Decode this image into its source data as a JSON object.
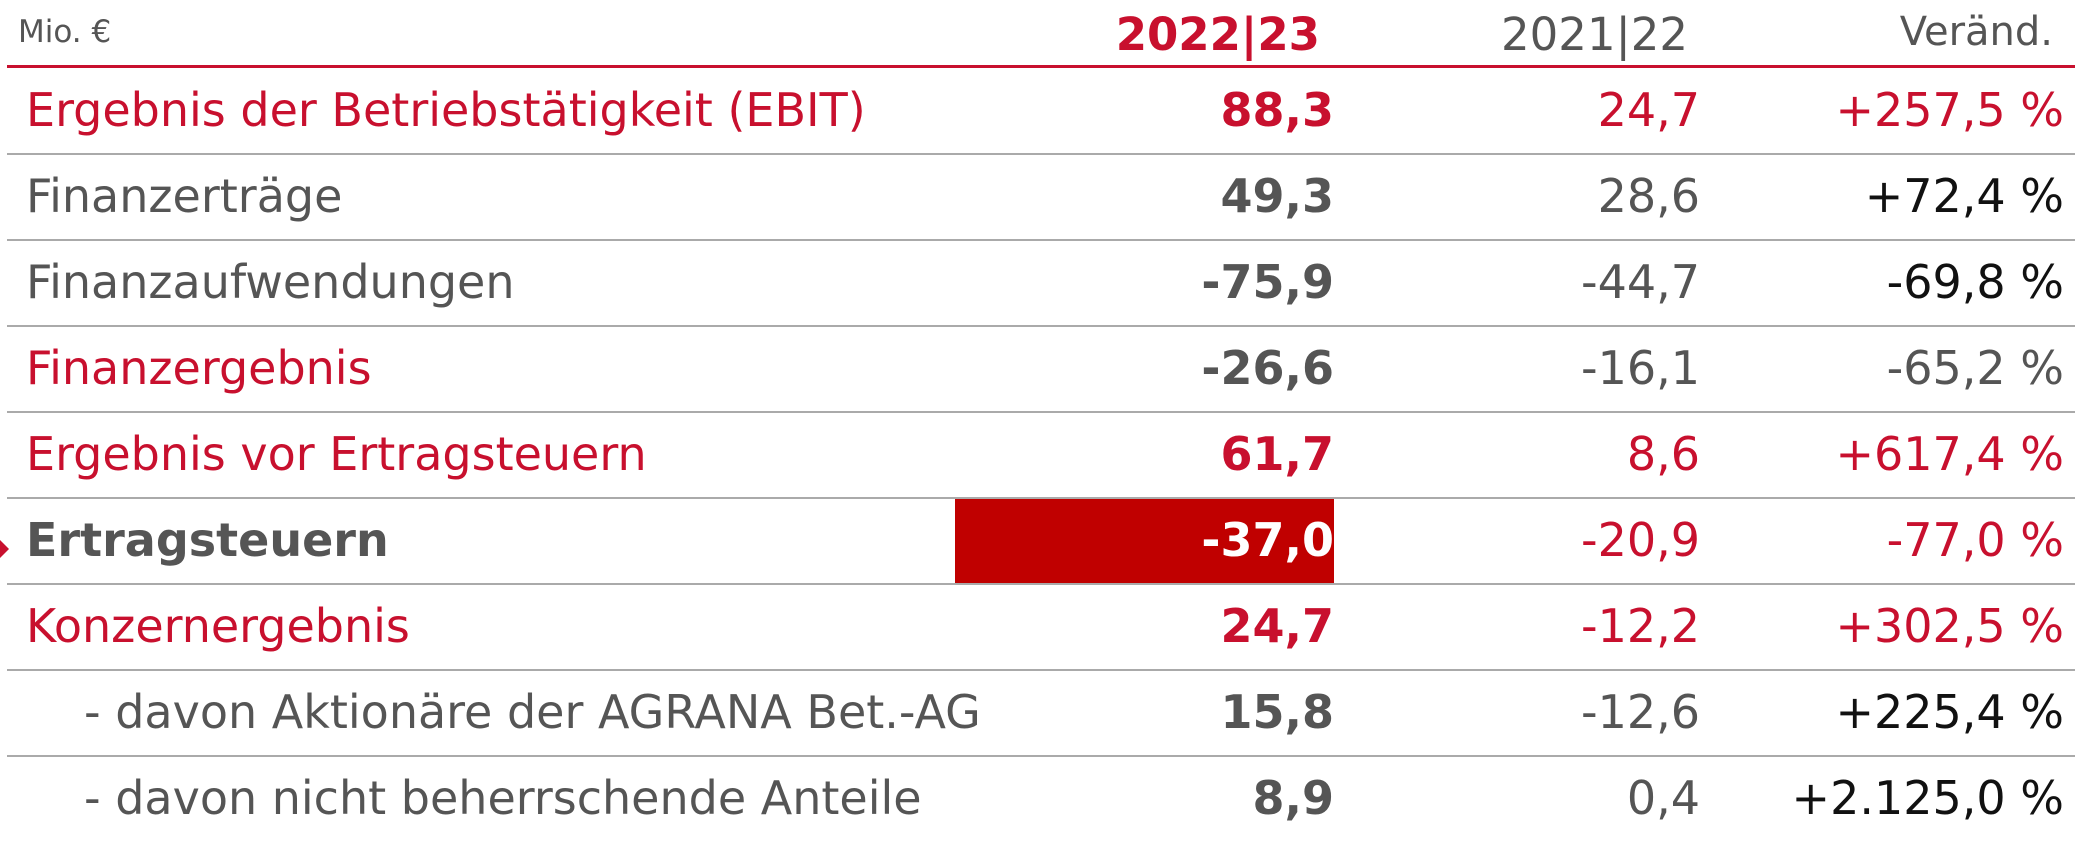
{
  "header": {
    "unit": "Mio. €",
    "columns": [
      "2022|23",
      "2021|22",
      "Veränd."
    ]
  },
  "table": {
    "rows": [
      [
        "Ergebnis der Betriebstätigkeit (EBIT)",
        "88,3",
        "24,7",
        "+257,5 %"
      ],
      [
        "Finanzerträge",
        "49,3",
        "28,6",
        "+72,4 %"
      ],
      [
        "Finanzaufwendungen",
        "-75,9",
        "-44,7",
        "-69,8 %"
      ],
      [
        "Finanzergebnis",
        "-26,6",
        "-16,1",
        "-65,2 %"
      ],
      [
        "Ergebnis vor Ertragsteuern",
        "61,7",
        "8,6",
        "+617,4 %"
      ],
      [
        "Ertragsteuern",
        "-37,0",
        "-20,9",
        "-77,0 %"
      ],
      [
        "Konzernergebnis",
        "24,7",
        "-12,2",
        "+302,5 %"
      ],
      [
        "- davon Aktionäre der AGRANA Bet.-AG",
        "15,8",
        "-12,6",
        "+225,4 %"
      ],
      [
        "- davon nicht beherrschende Anteile",
        "8,9",
        "0,4",
        "+2.125,0 %"
      ]
    ]
  }
}
